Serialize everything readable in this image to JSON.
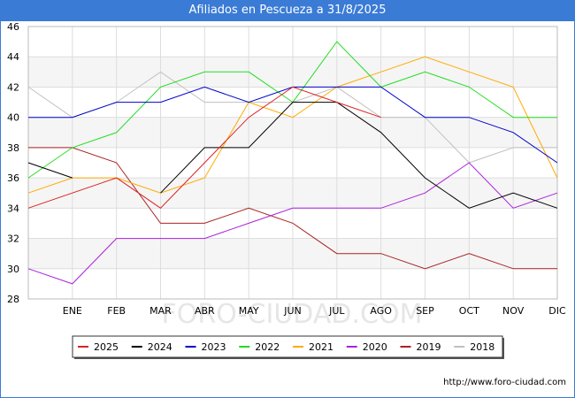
{
  "title": "Afiliados en Pescueza a 31/8/2025",
  "source": "http://www.foro-ciudad.com",
  "watermark": "FORO-CIUDAD.COM",
  "chart_data": {
    "type": "line",
    "title": "Afiliados en Pescueza a 31/8/2025",
    "xlabel": "",
    "ylabel": "",
    "ylim": [
      28,
      46
    ],
    "yticks": [
      28,
      30,
      32,
      34,
      36,
      38,
      40,
      42,
      44,
      46
    ],
    "categories": [
      "",
      "ENE",
      "FEB",
      "MAR",
      "ABR",
      "MAY",
      "JUN",
      "JUL",
      "AGO",
      "SEP",
      "OCT",
      "NOV",
      "DIC"
    ],
    "legend_position": "bottom",
    "grid": true,
    "series": [
      {
        "name": "2025",
        "color": "#dd2222",
        "values": [
          34,
          35,
          36,
          34,
          37,
          40,
          42,
          41,
          40,
          null,
          null,
          null,
          null
        ]
      },
      {
        "name": "2024",
        "color": "#000000",
        "values": [
          37,
          36,
          null,
          35,
          38,
          38,
          41,
          41,
          39,
          36,
          34,
          35,
          34
        ]
      },
      {
        "name": "2023",
        "color": "#0000cc",
        "values": [
          40,
          40,
          41,
          41,
          42,
          41,
          42,
          42,
          42,
          40,
          40,
          39,
          37
        ]
      },
      {
        "name": "2022",
        "color": "#22dd22",
        "values": [
          36,
          38,
          39,
          42,
          43,
          43,
          41,
          45,
          42,
          43,
          42,
          40,
          40
        ]
      },
      {
        "name": "2021",
        "color": "#ffaa00",
        "values": [
          35,
          36,
          36,
          35,
          36,
          41,
          40,
          42,
          43,
          44,
          43,
          42,
          36
        ]
      },
      {
        "name": "2020",
        "color": "#aa22dd",
        "values": [
          30,
          29,
          32,
          32,
          32,
          33,
          34,
          34,
          34,
          35,
          37,
          34,
          35
        ]
      },
      {
        "name": "2019",
        "color": "#aa2222",
        "values": [
          38,
          38,
          37,
          33,
          33,
          34,
          33,
          31,
          31,
          30,
          31,
          30,
          30
        ]
      },
      {
        "name": "2018",
        "color": "#c0c0c0",
        "values": [
          42,
          40,
          41,
          43,
          41,
          41,
          41,
          42,
          40,
          40,
          37,
          38,
          38
        ]
      }
    ]
  }
}
